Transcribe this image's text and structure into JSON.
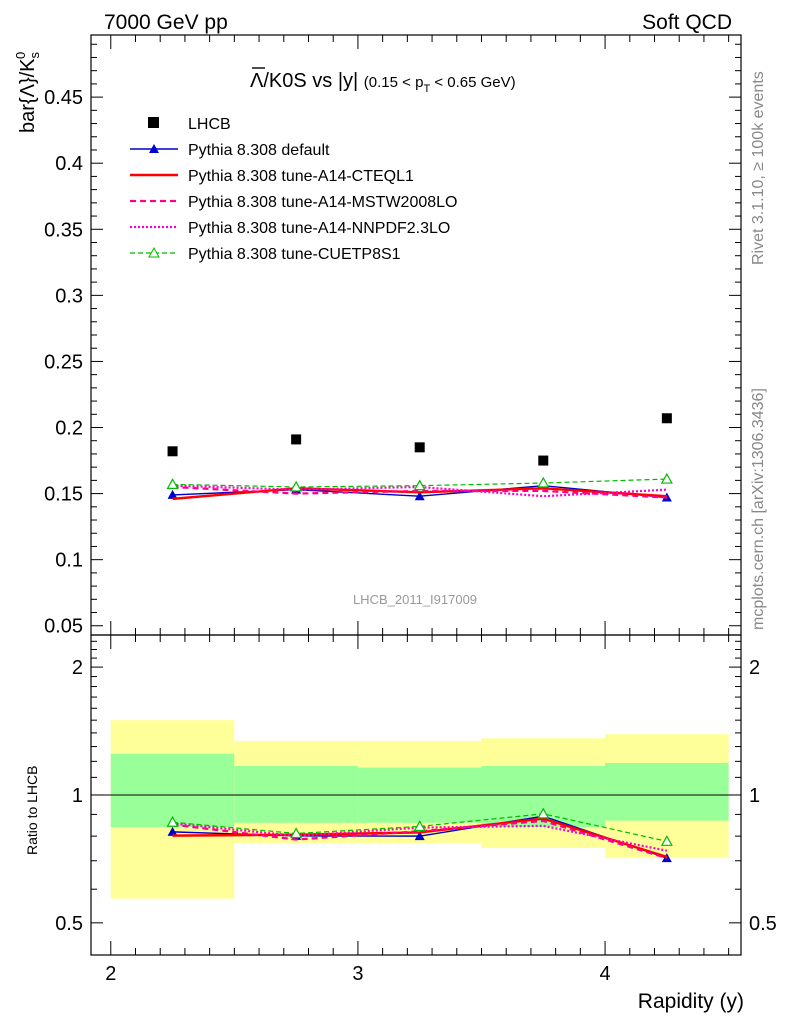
{
  "header": {
    "left": "7000 GeV pp",
    "right": "Soft QCD"
  },
  "side_text": {
    "rivet": "Rivet 3.1.10, ≥ 100k events",
    "mcplots": "mcplots.cern.ch [arXiv:1306.3436]"
  },
  "chart_data": {
    "type": "line",
    "title_main": "Λ/K0S vs |y|",
    "title_sub": "(0.15 < p",
    "title_sub_T": "T",
    "title_sub_end": " < 0.65 GeV)",
    "ylabel_main": "bar{Λ}/K",
    "ylabel_sup": "0",
    "ylabel_sub": "s",
    "ylabel_ratio": "Ratio to LHCB",
    "xlabel": "Rapidity (y)",
    "watermark": "LHCB_2011_I917009",
    "xlim": [
      1.92,
      4.55
    ],
    "ylim_main": [
      0.043,
      0.497
    ],
    "ylim_ratio_log": [
      0.42,
      2.38
    ],
    "xticks": [
      2,
      3,
      4
    ],
    "xtick_labels": [
      "2",
      "3",
      "4"
    ],
    "yticks_main": [
      0.05,
      0.1,
      0.15,
      0.2,
      0.25,
      0.3,
      0.35,
      0.4,
      0.45
    ],
    "ytick_labels_main": [
      "0.05",
      "0.1",
      "0.15",
      "0.2",
      "0.25",
      "0.3",
      "0.35",
      "0.4",
      "0.45"
    ],
    "yticks_ratio": [
      0.5,
      1,
      2
    ],
    "ytick_labels_ratio": [
      "0.5",
      "1",
      "2"
    ],
    "bins": [
      [
        2.0,
        2.5
      ],
      [
        2.5,
        3.0
      ],
      [
        3.0,
        3.5
      ],
      [
        3.5,
        4.0
      ],
      [
        4.0,
        4.5
      ]
    ],
    "x": [
      2.25,
      2.75,
      3.25,
      3.75,
      4.25
    ],
    "data": {
      "name": "LHCB",
      "values": [
        0.182,
        0.191,
        0.185,
        0.175,
        0.207
      ],
      "color": "#000000"
    },
    "band_green": {
      "lo": [
        0.84,
        0.86,
        0.86,
        0.84,
        0.87
      ],
      "hi": [
        1.25,
        1.17,
        1.16,
        1.17,
        1.19
      ]
    },
    "band_yellow": {
      "lo": [
        0.57,
        0.77,
        0.77,
        0.75,
        0.71
      ],
      "hi": [
        1.5,
        1.34,
        1.34,
        1.36,
        1.39
      ]
    },
    "series": [
      {
        "name": "Pythia 8.308 default",
        "values": [
          0.149,
          0.153,
          0.148,
          0.156,
          0.147
        ],
        "color": "#0000cc",
        "dash": "",
        "width": 1.4,
        "marker": "triangle"
      },
      {
        "name": "Pythia 8.308 tune-A14-CTEQL1",
        "values": [
          0.146,
          0.154,
          0.151,
          0.154,
          0.148
        ],
        "color": "#ff0000",
        "dash": "",
        "width": 2.4,
        "marker": "none"
      },
      {
        "name": "Pythia 8.308 tune-A14-MSTW2008LO",
        "values": [
          0.155,
          0.15,
          0.152,
          0.152,
          0.147
        ],
        "color": "#ff0088",
        "dash": "6,4",
        "width": 2.2,
        "marker": "none"
      },
      {
        "name": "Pythia 8.308 tune-A14-NNPDF2.3LO",
        "values": [
          0.156,
          0.153,
          0.155,
          0.148,
          0.153
        ],
        "color": "#ff00cc",
        "dash": "2,2",
        "width": 2.2,
        "marker": "none"
      },
      {
        "name": "Pythia 8.308 tune-CUETP8S1",
        "values": [
          0.157,
          0.155,
          0.156,
          0.158,
          0.161
        ],
        "color": "#00bb00",
        "dash": "5,3",
        "width": 1.2,
        "marker": "triangle-open"
      }
    ],
    "grid": false,
    "legend": "top-left"
  }
}
